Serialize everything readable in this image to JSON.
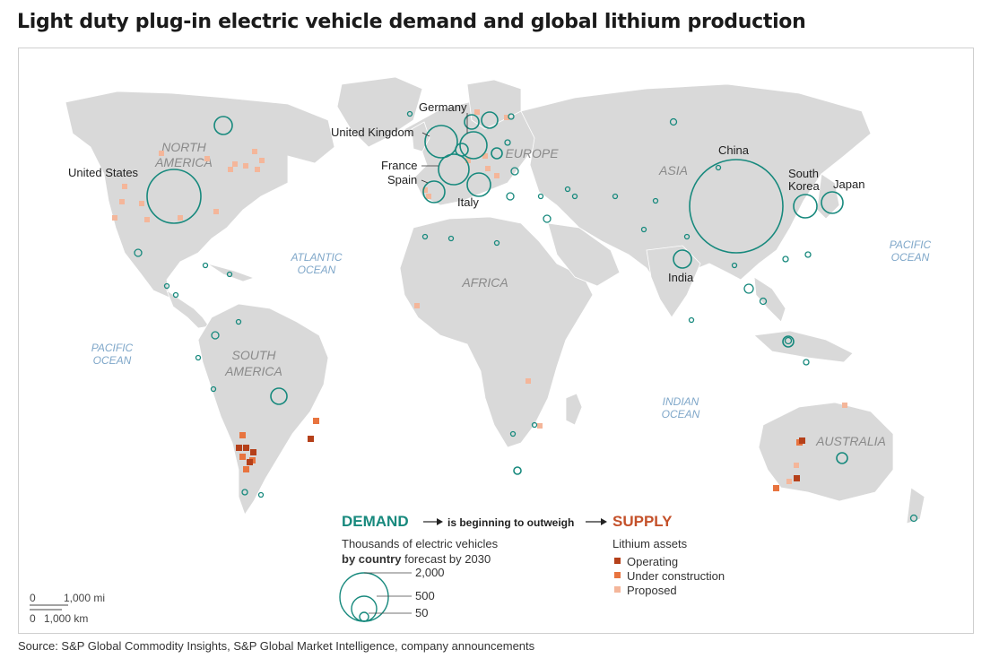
{
  "title": "Light duty plug-in electric vehicle demand and global lithium production",
  "source": "Source: S&P Global Commodity Insights, S&P Global Market Intelligence, company announcements",
  "colors": {
    "land": "#d9d9d9",
    "demand": "#17897d",
    "operating": "#b5401a",
    "under_construction": "#e8743f",
    "proposed": "#f4b69a",
    "ocean_label": "#7fa7c9",
    "region_label": "#8a8a8a"
  },
  "oceans": [
    "PACIFIC",
    "OCEAN",
    "ATLANTIC",
    "OCEAN",
    "PACIFIC",
    "OCEAN",
    "INDIAN",
    "OCEAN"
  ],
  "regions": [
    "NORTH",
    "AMERICA",
    "SOUTH",
    "AMERICA",
    "EUROPE",
    "AFRICA",
    "ASIA",
    "AUSTRALIA"
  ],
  "countries": [
    "United States",
    "Germany",
    "United Kingdom",
    "France",
    "Spain",
    "Italy",
    "China",
    "South",
    "Korea",
    "Japan",
    "India"
  ],
  "legend": {
    "demand_title": "DEMAND",
    "connector": "is beginning to outweigh",
    "supply_title": "SUPPLY",
    "demand_sub_1": "Thousands of electric vehicles",
    "demand_sub_2_bold": "by country",
    "demand_sub_2_rest": " forecast by 2030",
    "size_labels": [
      "2,000",
      "500",
      "50"
    ],
    "supply_sub": "Lithium assets",
    "supply_items": [
      "Operating",
      "Under construction",
      "Proposed"
    ]
  },
  "scale": {
    "mi_zero": "0",
    "mi_label": "1,000 mi",
    "km_zero": "0",
    "km_label": "1,000 km"
  }
}
